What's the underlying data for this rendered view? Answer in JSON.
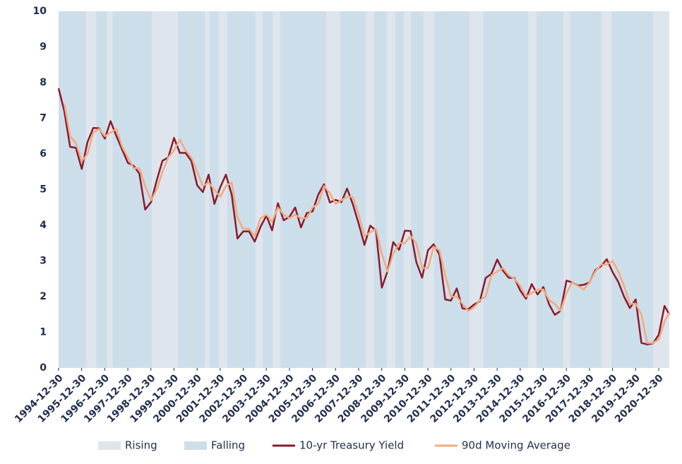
{
  "chart_data": {
    "type": "line",
    "x": [
      "1994-12-30",
      "1995-03-31",
      "1995-06-30",
      "1995-09-30",
      "1995-12-31",
      "1996-03-31",
      "1996-06-30",
      "1996-09-30",
      "1996-12-31",
      "1997-03-31",
      "1997-06-30",
      "1997-09-30",
      "1997-12-31",
      "1998-03-31",
      "1998-06-30",
      "1998-09-30",
      "1998-12-31",
      "1999-03-31",
      "1999-06-30",
      "1999-09-30",
      "1999-12-31",
      "2000-03-31",
      "2000-06-30",
      "2000-09-30",
      "2000-12-31",
      "2001-03-31",
      "2001-06-30",
      "2001-09-30",
      "2001-12-31",
      "2002-03-31",
      "2002-06-30",
      "2002-09-30",
      "2002-12-31",
      "2003-03-31",
      "2003-06-30",
      "2003-09-30",
      "2003-12-31",
      "2004-03-31",
      "2004-06-30",
      "2004-09-30",
      "2004-12-31",
      "2005-03-31",
      "2005-06-30",
      "2005-09-30",
      "2005-12-31",
      "2006-03-31",
      "2006-06-30",
      "2006-09-30",
      "2006-12-31",
      "2007-03-31",
      "2007-06-30",
      "2007-09-30",
      "2007-12-31",
      "2008-03-31",
      "2008-06-30",
      "2008-09-30",
      "2008-12-31",
      "2009-03-31",
      "2009-06-30",
      "2009-09-30",
      "2009-12-31",
      "2010-03-31",
      "2010-06-30",
      "2010-09-30",
      "2010-12-31",
      "2011-03-31",
      "2011-06-30",
      "2011-09-30",
      "2011-12-31",
      "2012-03-31",
      "2012-06-30",
      "2012-09-30",
      "2012-12-31",
      "2013-03-31",
      "2013-06-30",
      "2013-09-30",
      "2013-12-31",
      "2014-03-31",
      "2014-06-30",
      "2014-09-30",
      "2014-12-31",
      "2015-03-31",
      "2015-06-30",
      "2015-09-30",
      "2015-12-31",
      "2016-03-31",
      "2016-06-30",
      "2016-09-30",
      "2016-12-31",
      "2017-03-31",
      "2017-06-30",
      "2017-09-30",
      "2017-12-31",
      "2018-03-31",
      "2018-06-30",
      "2018-09-30",
      "2018-12-31",
      "2019-03-31",
      "2019-06-30",
      "2019-09-30",
      "2019-12-31",
      "2020-03-31",
      "2020-06-30",
      "2020-09-30",
      "2020-12-31",
      "2021-03-31",
      "2021-06-15"
    ],
    "series": [
      {
        "name": "10-yr Treasury Yield",
        "color": "#8b1a2b",
        "width": 2.5,
        "values": [
          7.84,
          7.2,
          6.2,
          6.17,
          5.58,
          6.33,
          6.73,
          6.72,
          6.43,
          6.92,
          6.51,
          6.12,
          5.75,
          5.67,
          5.45,
          4.44,
          4.65,
          5.25,
          5.81,
          5.9,
          6.45,
          6.03,
          6.03,
          5.8,
          5.12,
          4.93,
          5.42,
          4.6,
          5.07,
          5.42,
          4.86,
          3.63,
          3.83,
          3.83,
          3.54,
          3.96,
          4.27,
          3.86,
          4.62,
          4.14,
          4.24,
          4.5,
          3.94,
          4.34,
          4.39,
          4.86,
          5.15,
          4.64,
          4.71,
          4.65,
          5.03,
          4.59,
          4.04,
          3.45,
          3.99,
          3.85,
          2.25,
          2.71,
          3.53,
          3.31,
          3.85,
          3.84,
          2.97,
          2.53,
          3.3,
          3.47,
          3.18,
          1.92,
          1.89,
          2.23,
          1.67,
          1.65,
          1.78,
          1.87,
          2.52,
          2.64,
          3.04,
          2.73,
          2.53,
          2.52,
          2.17,
          1.94,
          2.35,
          2.06,
          2.27,
          1.78,
          1.49,
          1.6,
          2.45,
          2.4,
          2.31,
          2.33,
          2.4,
          2.74,
          2.85,
          3.05,
          2.69,
          2.41,
          2.0,
          1.68,
          1.92,
          0.7,
          0.66,
          0.69,
          0.93,
          1.74,
          1.5
        ]
      },
      {
        "name": "90d Moving Average",
        "color": "#f2aa7e",
        "width": 2.5,
        "values": [
          null,
          7.4,
          6.5,
          6.3,
          5.8,
          6.0,
          6.6,
          6.7,
          6.5,
          6.6,
          6.7,
          6.2,
          5.9,
          5.6,
          5.6,
          5.1,
          4.7,
          5.0,
          5.5,
          5.9,
          6.1,
          6.4,
          6.1,
          5.9,
          5.5,
          5.1,
          5.2,
          5.0,
          4.8,
          5.1,
          5.2,
          4.2,
          3.9,
          3.9,
          3.7,
          4.2,
          4.3,
          4.1,
          4.5,
          4.3,
          4.2,
          4.3,
          4.2,
          4.2,
          4.5,
          4.6,
          5.1,
          4.9,
          4.6,
          4.7,
          4.8,
          4.8,
          4.3,
          3.7,
          3.8,
          3.9,
          3.2,
          2.7,
          3.2,
          3.5,
          3.5,
          3.7,
          3.5,
          2.8,
          2.8,
          3.4,
          3.3,
          2.6,
          2.0,
          2.0,
          1.8,
          1.6,
          1.7,
          1.9,
          2.0,
          2.6,
          2.7,
          2.8,
          2.6,
          2.5,
          2.3,
          2.0,
          2.1,
          2.2,
          2.2,
          1.9,
          1.8,
          1.6,
          2.1,
          2.4,
          2.3,
          2.2,
          2.4,
          2.7,
          2.9,
          2.9,
          3.0,
          2.7,
          2.3,
          1.8,
          1.8,
          1.5,
          0.7,
          0.7,
          0.8,
          1.3,
          1.55
        ]
      }
    ],
    "bands": [
      {
        "name": "Rising",
        "color": "#dfe5ec",
        "periods": [
          [
            "1996-03-10",
            "1996-08-15"
          ],
          [
            "1997-02-05",
            "1997-05-05"
          ],
          [
            "1999-01-15",
            "2000-03-01"
          ],
          [
            "2001-05-01",
            "2001-07-15"
          ],
          [
            "2001-12-10",
            "2002-04-20"
          ],
          [
            "2003-07-10",
            "2003-11-01"
          ],
          [
            "2004-04-05",
            "2004-08-05"
          ],
          [
            "2006-08-01",
            "2007-03-15"
          ],
          [
            "2008-04-20",
            "2008-09-01"
          ],
          [
            "2009-03-20",
            "2009-08-01"
          ],
          [
            "2009-12-15",
            "2010-04-05"
          ],
          [
            "2010-10-20",
            "2011-04-05"
          ],
          [
            "2012-10-20",
            "2013-05-25"
          ],
          [
            "2015-05-05",
            "2015-09-15"
          ],
          [
            "2016-11-15",
            "2017-03-01"
          ],
          [
            "2018-07-10",
            "2018-12-15"
          ],
          [
            "2020-10-01",
            "2021-06-15"
          ]
        ]
      },
      {
        "name": "Falling",
        "color": "#cddeeb"
      }
    ],
    "xlim": [
      "1994-12-30",
      "2021-06-15"
    ],
    "xticks": [
      "1994-12-30",
      "1995-12-30",
      "1996-12-30",
      "1997-12-30",
      "1998-12-30",
      "1999-12-30",
      "2000-12-30",
      "2001-12-30",
      "2002-12-30",
      "2003-12-30",
      "2004-12-30",
      "2005-12-30",
      "2006-12-30",
      "2007-12-30",
      "2008-12-30",
      "2009-12-30",
      "2010-12-30",
      "2011-12-30",
      "2012-12-30",
      "2013-12-30",
      "2014-12-30",
      "2015-12-30",
      "2016-12-30",
      "2017-12-30",
      "2018-12-30",
      "2019-12-30",
      "2020-12-30"
    ],
    "ylim": [
      0,
      10
    ],
    "yticks": [
      0,
      1,
      2,
      3,
      4,
      5,
      6,
      7,
      8,
      9,
      10
    ]
  }
}
